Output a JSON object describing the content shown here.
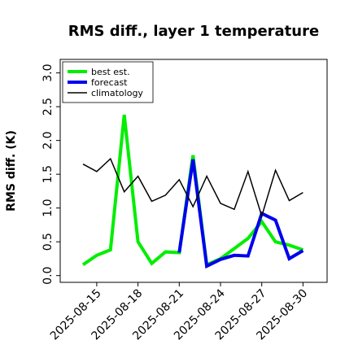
{
  "chart_data": {
    "type": "line",
    "title": "RMS diff., layer 1 temperature",
    "xlabel": "",
    "ylabel": "RMS diff. (K)",
    "ylim": [
      -0.1,
      3.2
    ],
    "yticks": [
      "0.0",
      "0.5",
      "1.0",
      "1.5",
      "2.0",
      "2.5",
      "3.0"
    ],
    "x": [
      "2025-08-14",
      "2025-08-15",
      "2025-08-16",
      "2025-08-17",
      "2025-08-18",
      "2025-08-19",
      "2025-08-20",
      "2025-08-21",
      "2025-08-22",
      "2025-08-23",
      "2025-08-24",
      "2025-08-25",
      "2025-08-26",
      "2025-08-27",
      "2025-08-28",
      "2025-08-29",
      "2025-08-30"
    ],
    "xticks": [
      "2025-08-15",
      "2025-08-18",
      "2025-08-21",
      "2025-08-24",
      "2025-08-27",
      "2025-08-30"
    ],
    "highlight_tick": "2025-08-21",
    "highlight_color": "#2e8b2e",
    "legend_position": "upper-left",
    "series": [
      {
        "name": "best est.",
        "color": "#00ee00",
        "values": [
          0.16,
          0.3,
          0.38,
          2.38,
          0.5,
          0.18,
          0.35,
          0.34,
          1.78,
          0.16,
          0.25,
          0.4,
          0.55,
          0.8,
          0.5,
          0.45,
          0.38
        ]
      },
      {
        "name": "forecast",
        "color": "#0000ee",
        "values": [
          null,
          null,
          null,
          null,
          null,
          null,
          null,
          0.34,
          1.72,
          0.14,
          0.24,
          0.3,
          0.29,
          0.92,
          0.82,
          0.25,
          0.37
        ]
      },
      {
        "name": "climatology",
        "color": "#000000",
        "values": [
          1.65,
          1.54,
          1.73,
          1.24,
          1.47,
          1.1,
          1.19,
          1.42,
          1.02,
          1.47,
          1.07,
          0.98,
          1.54,
          0.88,
          1.56,
          1.11,
          1.23
        ]
      }
    ]
  }
}
